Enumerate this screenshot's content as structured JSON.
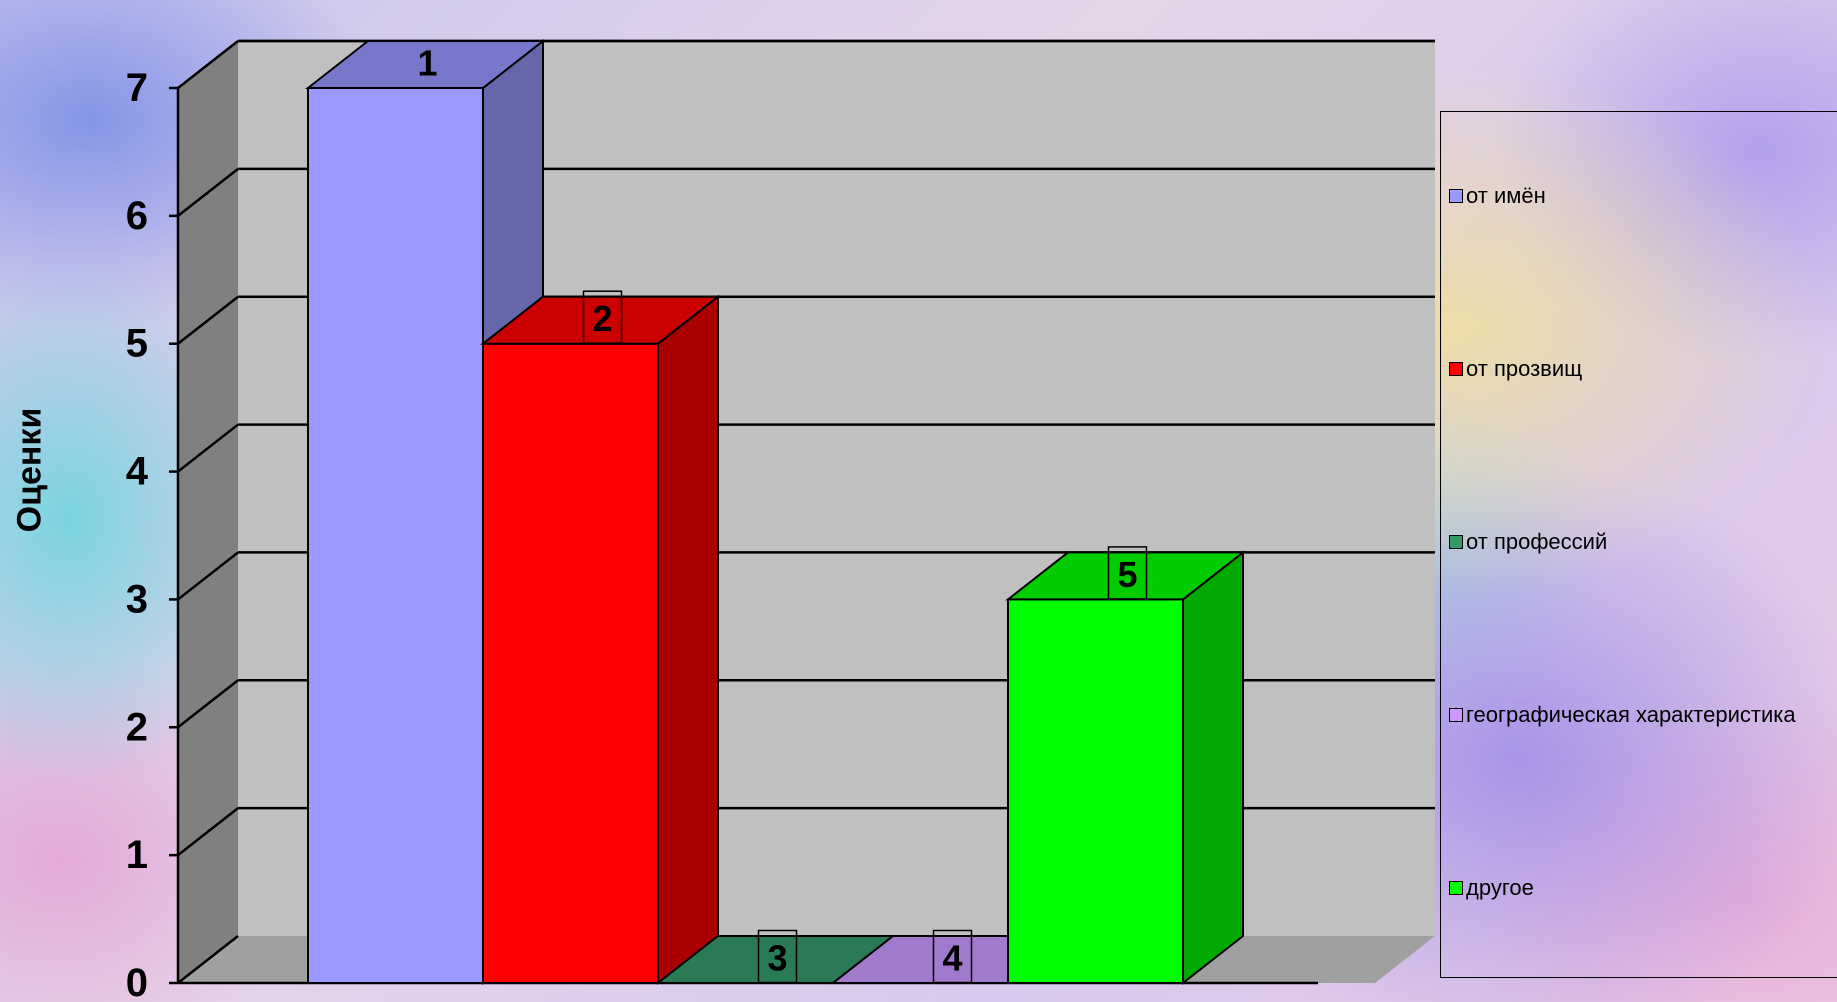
{
  "chart_data": {
    "type": "bar",
    "ylabel": "Оценки",
    "ylim": [
      0,
      7
    ],
    "yticks": [
      "0",
      "1",
      "2",
      "3",
      "4",
      "5",
      "6",
      "7"
    ],
    "grid": true,
    "legend_position": "right",
    "bars": [
      {
        "label": "1",
        "legend": "от имён",
        "value": 7,
        "color": "#9999ff",
        "side_color": "#6666aa",
        "top_color": "#7777cc"
      },
      {
        "label": "2",
        "legend": "от прозвищ",
        "value": 5,
        "color": "#ff0000",
        "side_color": "#aa0000",
        "top_color": "#cc0000"
      },
      {
        "label": "3",
        "legend": "от профессий",
        "value": 0,
        "color": "#339966",
        "side_color": "#1f6b45",
        "top_color": "#2a7a55"
      },
      {
        "label": "4",
        "legend": "географическая характеристика",
        "value": 0,
        "color": "#cc99ff",
        "side_color": "#8866bb",
        "top_color": "#a07acc"
      },
      {
        "label": "5",
        "legend": "другое",
        "value": 3,
        "color": "#00ff00",
        "side_color": "#00aa00",
        "top_color": "#00cc00"
      }
    ]
  },
  "colors": {
    "wall": "#c0c0c0",
    "side_wall": "#808080",
    "floor": "#a0a0a0",
    "gridline": "#000000"
  }
}
